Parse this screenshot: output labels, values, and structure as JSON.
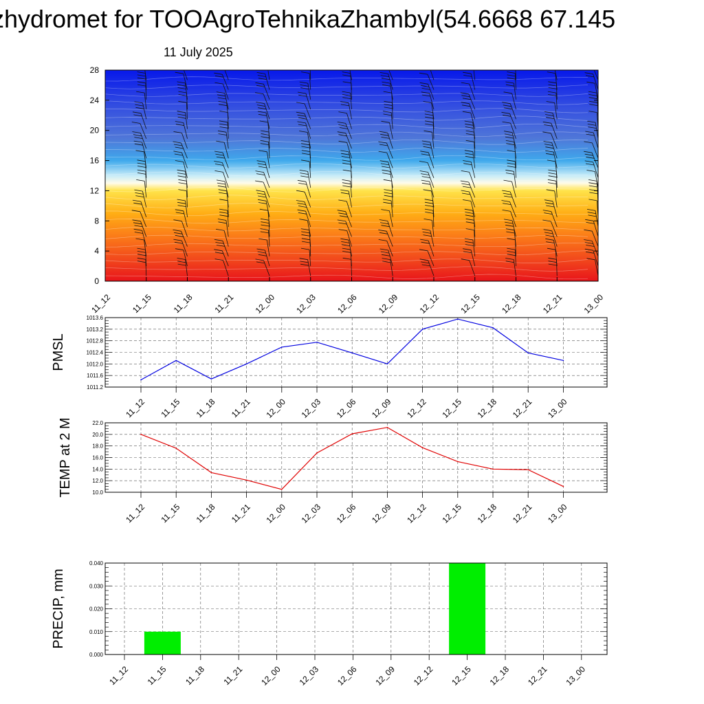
{
  "header": {
    "title": "zhydromet for TOOAgroTehnikaZhambyl(54.6668 67.145",
    "date": "11 July 2025"
  },
  "chart_data": [
    {
      "type": "heatmap",
      "y_ticks": [
        "0",
        "4",
        "8",
        "12",
        "16",
        "20",
        "24",
        "28"
      ],
      "ylim": [
        0,
        28
      ],
      "x_ticks": [
        "11_12",
        "11_15",
        "11_18",
        "11_21",
        "12_00",
        "12_03",
        "12_06",
        "12_09",
        "12_12",
        "12_15",
        "12_18",
        "12_21",
        "13_00"
      ],
      "color_stops": [
        {
          "level": 0,
          "color": "#e8141b"
        },
        {
          "level": 3,
          "color": "#f24a1c"
        },
        {
          "level": 6,
          "color": "#fb7c18"
        },
        {
          "level": 9,
          "color": "#ffae15"
        },
        {
          "level": 12,
          "color": "#ffe34a"
        },
        {
          "level": 13,
          "color": "#fffbe8"
        },
        {
          "level": 14,
          "color": "#c8ecf8"
        },
        {
          "level": 16,
          "color": "#3fa9ec"
        },
        {
          "level": 19,
          "color": "#4f76d8"
        },
        {
          "level": 23,
          "color": "#3550e0"
        },
        {
          "level": 28,
          "color": "#0718ea"
        }
      ],
      "wind_barbs": true
    },
    {
      "type": "line",
      "ylabel": "PMSL",
      "x": [
        "11_12",
        "11_15",
        "11_18",
        "11_21",
        "12_00",
        "12_03",
        "12_06",
        "12_09",
        "12_12",
        "12_15",
        "12_18",
        "12_21",
        "13_00"
      ],
      "values": [
        1011.45,
        1012.12,
        1011.48,
        1012.0,
        1012.58,
        1012.75,
        1012.38,
        1012.0,
        1013.2,
        1013.55,
        1013.25,
        1012.38,
        1012.12
      ],
      "ylim": [
        1011.2,
        1013.6
      ],
      "y_ticks": [
        "1011.2",
        "1011.6",
        "1012.0",
        "1012.4",
        "1012.8",
        "1013.2",
        "1013.6"
      ],
      "color": "#0000e0",
      "grid": true
    },
    {
      "type": "line",
      "ylabel": "TEMP at 2 M",
      "x": [
        "11_12",
        "11_15",
        "11_18",
        "11_21",
        "12_00",
        "12_03",
        "12_06",
        "12_09",
        "12_12",
        "12_15",
        "12_18",
        "12_21",
        "13_00"
      ],
      "values": [
        20.0,
        17.6,
        13.4,
        12.1,
        10.5,
        16.8,
        20.1,
        21.2,
        17.7,
        15.3,
        14.0,
        13.9,
        11.0
      ],
      "ylim": [
        10.0,
        22.0
      ],
      "y_ticks": [
        "10.0",
        "12.0",
        "14.0",
        "16.0",
        "18.0",
        "20.0",
        "22.0"
      ],
      "color": "#e00000",
      "grid": true
    },
    {
      "type": "bar",
      "ylabel": "PRECIP, mm",
      "categories": [
        "11_12",
        "11_15",
        "11_18",
        "11_21",
        "12_00",
        "12_03",
        "12_06",
        "12_09",
        "12_12",
        "12_15",
        "12_18",
        "12_21",
        "13_00"
      ],
      "values": [
        0,
        0.01,
        0,
        0,
        0,
        0,
        0,
        0,
        0,
        0.04,
        0,
        0,
        0
      ],
      "ylim": [
        0,
        0.04
      ],
      "y_ticks": [
        "0.000",
        "0.010",
        "0.020",
        "0.030",
        "0.040"
      ],
      "color": "#00ee00",
      "grid": true
    }
  ]
}
